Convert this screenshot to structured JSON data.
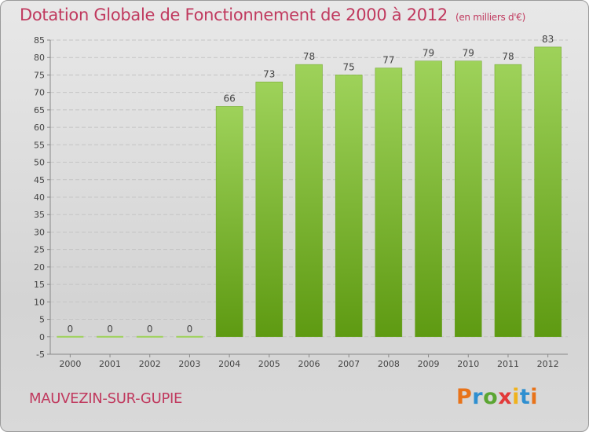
{
  "title": "Dotation Globale de Fonctionnement de 2000 à 2012",
  "subtitle": "(en milliers d'€)",
  "commune": "MAUVEZIN-SUR-GUPIE",
  "logo": {
    "text": "Proxiti",
    "letter_colors": [
      "#e8731a",
      "#2f8fd0",
      "#5ba532",
      "#e23a3a",
      "#f0b21c",
      "#2f8fd0",
      "#e8731a"
    ]
  },
  "colors": {
    "bar_top": "#9ed25a",
    "bar_bottom": "#5e9a12",
    "title": "#c0395e",
    "grid": "#c4c4c4"
  },
  "chart_data": {
    "type": "bar",
    "categories": [
      "2000",
      "2001",
      "2002",
      "2003",
      "2004",
      "2005",
      "2006",
      "2007",
      "2008",
      "2009",
      "2010",
      "2011",
      "2012"
    ],
    "values": [
      0,
      0,
      0,
      0,
      66,
      73,
      78,
      75,
      77,
      79,
      79,
      78,
      83
    ],
    "ylim": [
      -5,
      85
    ],
    "yticks": [
      -5,
      0,
      5,
      10,
      15,
      20,
      25,
      30,
      35,
      40,
      45,
      50,
      55,
      60,
      65,
      70,
      75,
      80,
      85
    ],
    "grid": true
  }
}
